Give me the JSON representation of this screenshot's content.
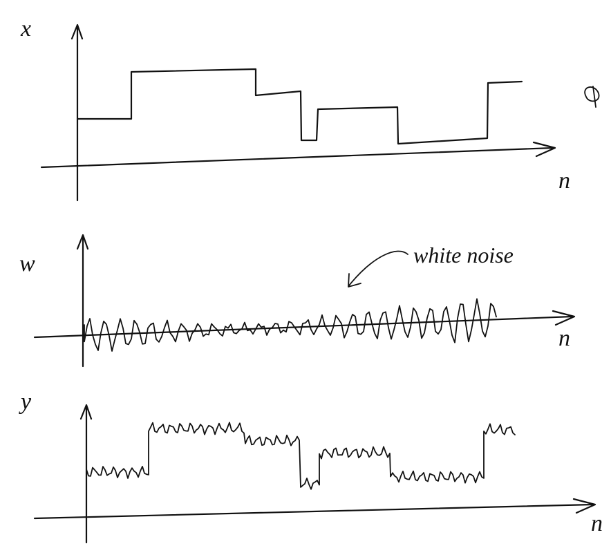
{
  "panels": [
    {
      "y_label": "x",
      "x_label": "n"
    },
    {
      "y_label": "w",
      "x_label": "n",
      "annotation": "white noise"
    },
    {
      "y_label": "y",
      "x_label": "n"
    }
  ]
}
